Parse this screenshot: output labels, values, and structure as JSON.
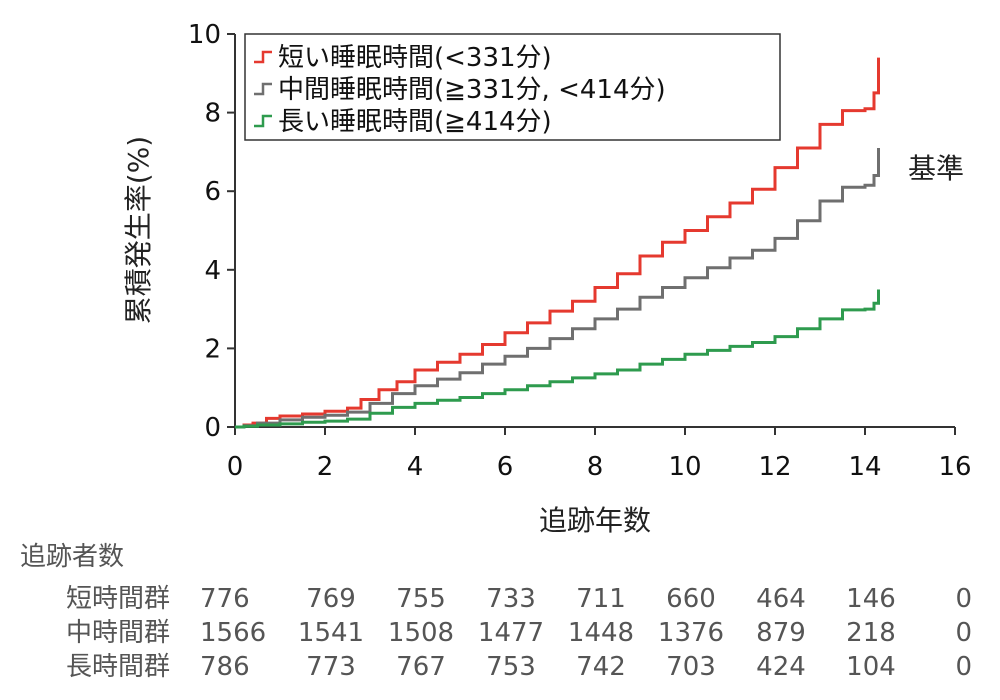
{
  "chart_data": {
    "type": "line",
    "step": true,
    "xlabel": "追跡年数",
    "ylabel": "累積発生率(%)",
    "xlim": [
      0,
      16
    ],
    "ylim": [
      0,
      10
    ],
    "x_ticks": [
      0,
      2,
      4,
      6,
      8,
      10,
      12,
      14,
      16
    ],
    "y_ticks": [
      0,
      2,
      4,
      6,
      8,
      10
    ],
    "grid": false,
    "legend_position": "top-left",
    "annotation": "基準",
    "series": [
      {
        "name": "短い睡眠時間(<331分)",
        "color": "#e5392f",
        "points": [
          [
            0.2,
            0.05
          ],
          [
            0.4,
            0.1
          ],
          [
            0.7,
            0.22
          ],
          [
            1.0,
            0.28
          ],
          [
            1.5,
            0.33
          ],
          [
            2.0,
            0.4
          ],
          [
            2.5,
            0.48
          ],
          [
            2.8,
            0.7
          ],
          [
            3.2,
            0.95
          ],
          [
            3.6,
            1.15
          ],
          [
            4.0,
            1.45
          ],
          [
            4.5,
            1.65
          ],
          [
            5.0,
            1.85
          ],
          [
            5.5,
            2.1
          ],
          [
            6.0,
            2.4
          ],
          [
            6.5,
            2.65
          ],
          [
            7.0,
            2.95
          ],
          [
            7.5,
            3.2
          ],
          [
            8.0,
            3.55
          ],
          [
            8.5,
            3.9
          ],
          [
            9.0,
            4.35
          ],
          [
            9.5,
            4.7
          ],
          [
            10.0,
            5.0
          ],
          [
            10.5,
            5.35
          ],
          [
            11.0,
            5.7
          ],
          [
            11.5,
            6.05
          ],
          [
            12.0,
            6.6
          ],
          [
            12.5,
            7.1
          ],
          [
            13.0,
            7.7
          ],
          [
            13.5,
            8.05
          ],
          [
            14.0,
            8.1
          ],
          [
            14.2,
            8.5
          ],
          [
            14.3,
            9.4
          ]
        ]
      },
      {
        "name": "中間睡眠時間(≧331分, <414分)",
        "color": "#6f6f6f",
        "points": [
          [
            0.2,
            0.03
          ],
          [
            0.5,
            0.1
          ],
          [
            1.0,
            0.18
          ],
          [
            1.5,
            0.25
          ],
          [
            2.0,
            0.3
          ],
          [
            2.5,
            0.38
          ],
          [
            3.0,
            0.6
          ],
          [
            3.5,
            0.85
          ],
          [
            4.0,
            1.05
          ],
          [
            4.5,
            1.22
          ],
          [
            5.0,
            1.38
          ],
          [
            5.5,
            1.6
          ],
          [
            6.0,
            1.8
          ],
          [
            6.5,
            2.0
          ],
          [
            7.0,
            2.25
          ],
          [
            7.5,
            2.5
          ],
          [
            8.0,
            2.75
          ],
          [
            8.5,
            3.0
          ],
          [
            9.0,
            3.3
          ],
          [
            9.5,
            3.55
          ],
          [
            10.0,
            3.8
          ],
          [
            10.5,
            4.05
          ],
          [
            11.0,
            4.3
          ],
          [
            11.5,
            4.5
          ],
          [
            12.0,
            4.8
          ],
          [
            12.5,
            5.25
          ],
          [
            13.0,
            5.75
          ],
          [
            13.5,
            6.1
          ],
          [
            14.0,
            6.15
          ],
          [
            14.2,
            6.4
          ],
          [
            14.3,
            7.1
          ]
        ]
      },
      {
        "name": "長い睡眠時間(≧414分)",
        "color": "#2e9b4e",
        "points": [
          [
            0.2,
            0.02
          ],
          [
            0.5,
            0.05
          ],
          [
            1.0,
            0.08
          ],
          [
            1.5,
            0.12
          ],
          [
            2.0,
            0.15
          ],
          [
            2.5,
            0.2
          ],
          [
            3.0,
            0.35
          ],
          [
            3.5,
            0.5
          ],
          [
            4.0,
            0.6
          ],
          [
            4.5,
            0.68
          ],
          [
            5.0,
            0.75
          ],
          [
            5.5,
            0.85
          ],
          [
            6.0,
            0.95
          ],
          [
            6.5,
            1.05
          ],
          [
            7.0,
            1.15
          ],
          [
            7.5,
            1.25
          ],
          [
            8.0,
            1.35
          ],
          [
            8.5,
            1.45
          ],
          [
            9.0,
            1.6
          ],
          [
            9.5,
            1.72
          ],
          [
            10.0,
            1.85
          ],
          [
            10.5,
            1.95
          ],
          [
            11.0,
            2.05
          ],
          [
            11.5,
            2.15
          ],
          [
            12.0,
            2.3
          ],
          [
            12.5,
            2.5
          ],
          [
            13.0,
            2.75
          ],
          [
            13.5,
            2.98
          ],
          [
            14.0,
            3.0
          ],
          [
            14.2,
            3.15
          ],
          [
            14.3,
            3.5
          ]
        ]
      }
    ],
    "risk_table": {
      "title": "追跡者数",
      "x": [
        0,
        2,
        4,
        6,
        8,
        10,
        12,
        14,
        16
      ],
      "rows": [
        {
          "label": "短時間群",
          "values": [
            "776",
            "769",
            "755",
            "733",
            "711",
            "660",
            "464",
            "146",
            "0"
          ]
        },
        {
          "label": "中時間群",
          "values": [
            "1566",
            "1541",
            "1508",
            "1477",
            "1448",
            "1376",
            "879",
            "218",
            "0"
          ]
        },
        {
          "label": "長時間群",
          "values": [
            "786",
            "773",
            "767",
            "753",
            "742",
            "703",
            "424",
            "104",
            "0"
          ]
        }
      ]
    }
  }
}
